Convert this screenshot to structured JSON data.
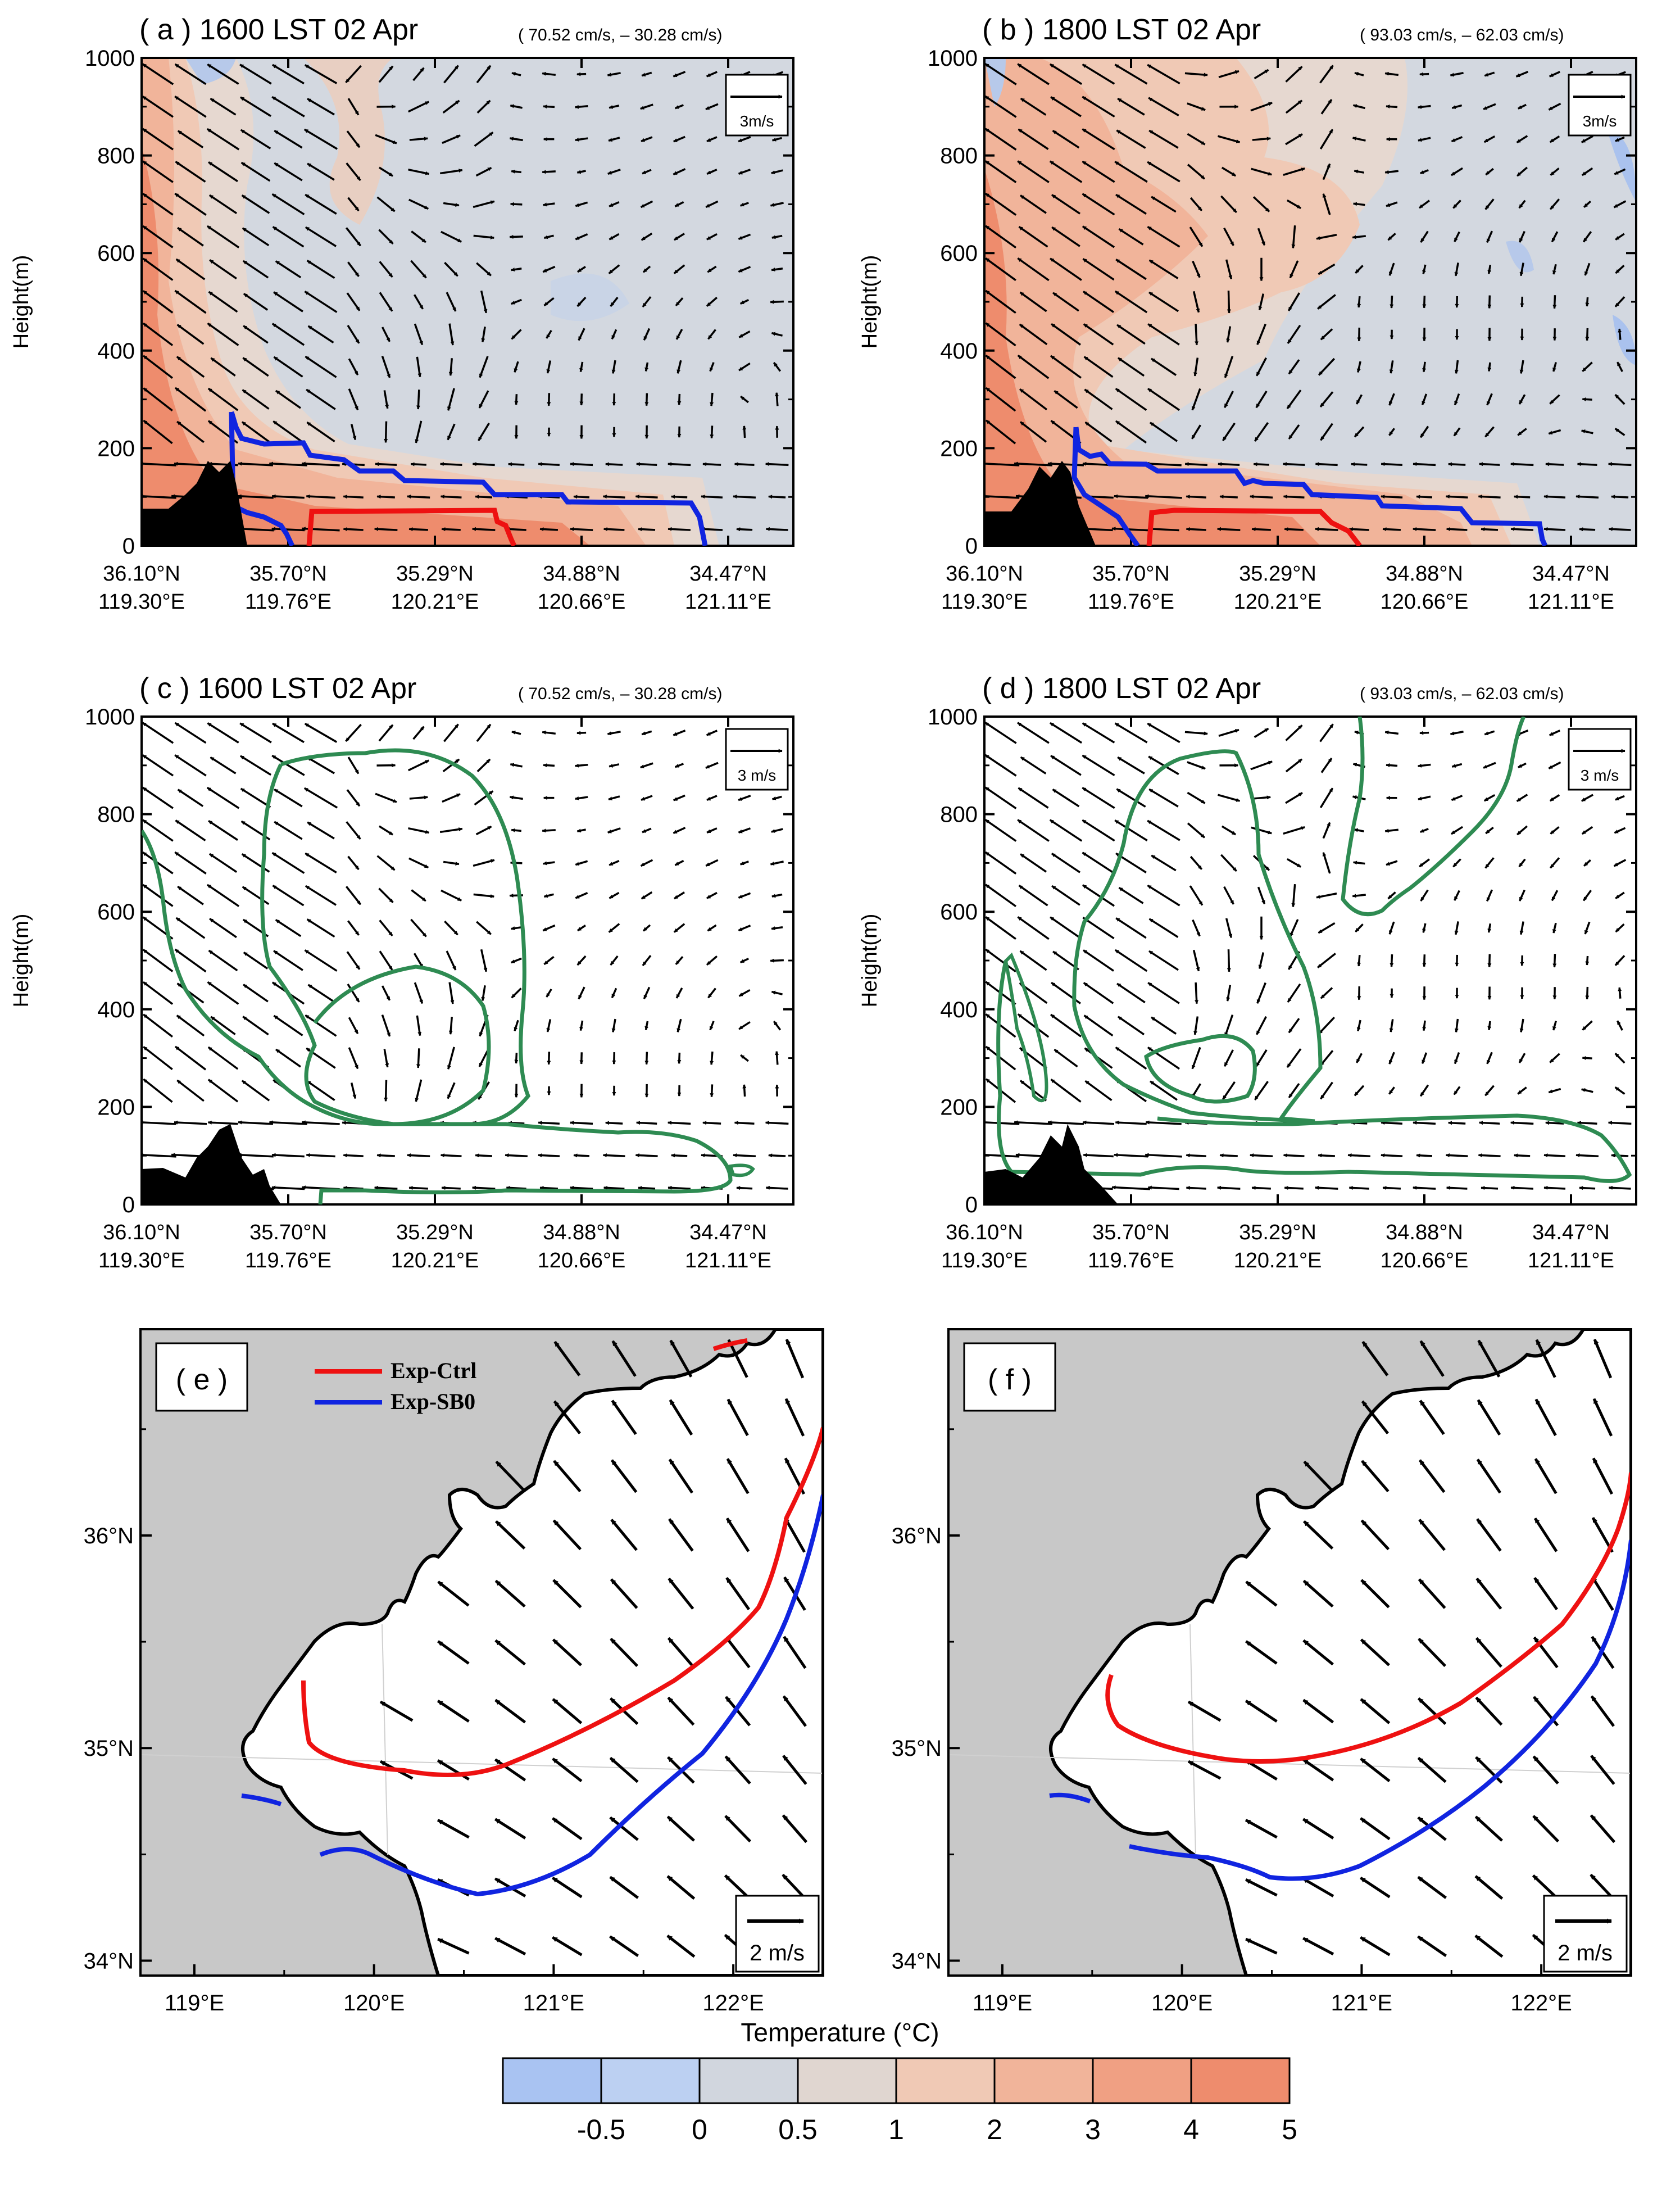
{
  "figure": {
    "colorbar_title": "Temperature (°C)"
  },
  "colors": {
    "temperature_levels": [
      "#a9c3f2",
      "#bcd0f2",
      "#d1d6de",
      "#e0d6d0",
      "#f0c9b5",
      "#f1b49a",
      "#f0a083",
      "#ee8c6d"
    ],
    "exp_ctrl": "#ee1111",
    "exp_sb0": "#1024e0",
    "contour_green": "#2e8b52",
    "land_gray": "#c8c8c8",
    "terrain": "#000000"
  },
  "chart_data": [
    {
      "type": "contour-vector",
      "panel": "a",
      "title": "( a ) 1600 LST 02 Apr",
      "reference": "( 70.52 cm/s, – 30.28 cm/s)",
      "ylabel": "Height(m)",
      "ylim": [
        0,
        1000
      ],
      "yticks": [
        "0",
        "200",
        "400",
        "600",
        "800",
        "1000"
      ],
      "xticks": [
        [
          "36.10°N",
          "119.30°E"
        ],
        [
          "35.70°N",
          "119.76°E"
        ],
        [
          "35.29°N",
          "120.21°E"
        ],
        [
          "34.88°N",
          "120.66°E"
        ],
        [
          "34.47°N",
          "121.11°E"
        ]
      ],
      "ref_vector": "3m/s",
      "shading": "temperature-difference",
      "lines": [
        {
          "name": "Exp-Ctrl",
          "color": "red"
        },
        {
          "name": "Exp-SB0",
          "color": "blue"
        }
      ]
    },
    {
      "type": "contour-vector",
      "panel": "b",
      "title": "( b ) 1800 LST 02 Apr",
      "reference": "( 93.03 cm/s, – 62.03 cm/s)",
      "ylabel": "Height(m)",
      "ylim": [
        0,
        1000
      ],
      "yticks": [
        "0",
        "200",
        "400",
        "600",
        "800",
        "1000"
      ],
      "xticks": [
        [
          "36.10°N",
          "119.30°E"
        ],
        [
          "35.70°N",
          "119.76°E"
        ],
        [
          "35.29°N",
          "120.21°E"
        ],
        [
          "34.88°N",
          "120.66°E"
        ],
        [
          "34.47°N",
          "121.11°E"
        ]
      ],
      "ref_vector": "3m/s",
      "shading": "temperature-difference"
    },
    {
      "type": "contour-vector",
      "panel": "c",
      "title": "( c ) 1600 LST 02 Apr",
      "reference": "( 70.52 cm/s, – 30.28 cm/s)",
      "ylabel": "Height(m)",
      "ylim": [
        0,
        1000
      ],
      "yticks": [
        "0",
        "200",
        "400",
        "600",
        "800",
        "1000"
      ],
      "xticks": [
        [
          "36.10°N",
          "119.30°E"
        ],
        [
          "35.70°N",
          "119.76°E"
        ],
        [
          "35.29°N",
          "120.21°E"
        ],
        [
          "34.88°N",
          "120.66°E"
        ],
        [
          "34.47°N",
          "121.11°E"
        ]
      ],
      "ref_vector": "3 m/s",
      "contour": "green"
    },
    {
      "type": "contour-vector",
      "panel": "d",
      "title": "( d ) 1800 LST 02 Apr",
      "reference": "( 93.03 cm/s, – 62.03 cm/s)",
      "ylabel": "Height(m)",
      "ylim": [
        0,
        1000
      ],
      "yticks": [
        "0",
        "200",
        "400",
        "600",
        "800",
        "1000"
      ],
      "xticks": [
        [
          "36.10°N",
          "119.30°E"
        ],
        [
          "35.70°N",
          "119.76°E"
        ],
        [
          "35.29°N",
          "120.21°E"
        ],
        [
          "34.88°N",
          "120.66°E"
        ],
        [
          "34.47°N",
          "121.11°E"
        ]
      ],
      "ref_vector": "3 m/s",
      "contour": "green"
    },
    {
      "type": "map-vector",
      "panel": "e",
      "label": "( e )",
      "xticks": [
        "119°E",
        "120°E",
        "121°E",
        "122°E"
      ],
      "yticks": [
        "34°N",
        "35°N",
        "36°N"
      ],
      "xlim": [
        118.7,
        122.5
      ],
      "ylim": [
        33.93,
        36.97
      ],
      "ref_vector": "2 m/s",
      "legend": [
        {
          "name": "Exp-Ctrl",
          "color": "red"
        },
        {
          "name": "Exp-SB0",
          "color": "blue"
        }
      ]
    },
    {
      "type": "map-vector",
      "panel": "f",
      "label": "( f )",
      "xticks": [
        "119°E",
        "120°E",
        "121°E",
        "122°E"
      ],
      "yticks": [
        "34°N",
        "35°N",
        "36°N"
      ],
      "xlim": [
        118.7,
        122.5
      ],
      "ylim": [
        33.93,
        36.97
      ],
      "ref_vector": "2 m/s"
    }
  ],
  "colorbar": {
    "title": "Temperature (°C)",
    "labels": [
      "-0.5",
      "0",
      "0.5",
      "1",
      "2",
      "3",
      "4",
      "5"
    ]
  }
}
